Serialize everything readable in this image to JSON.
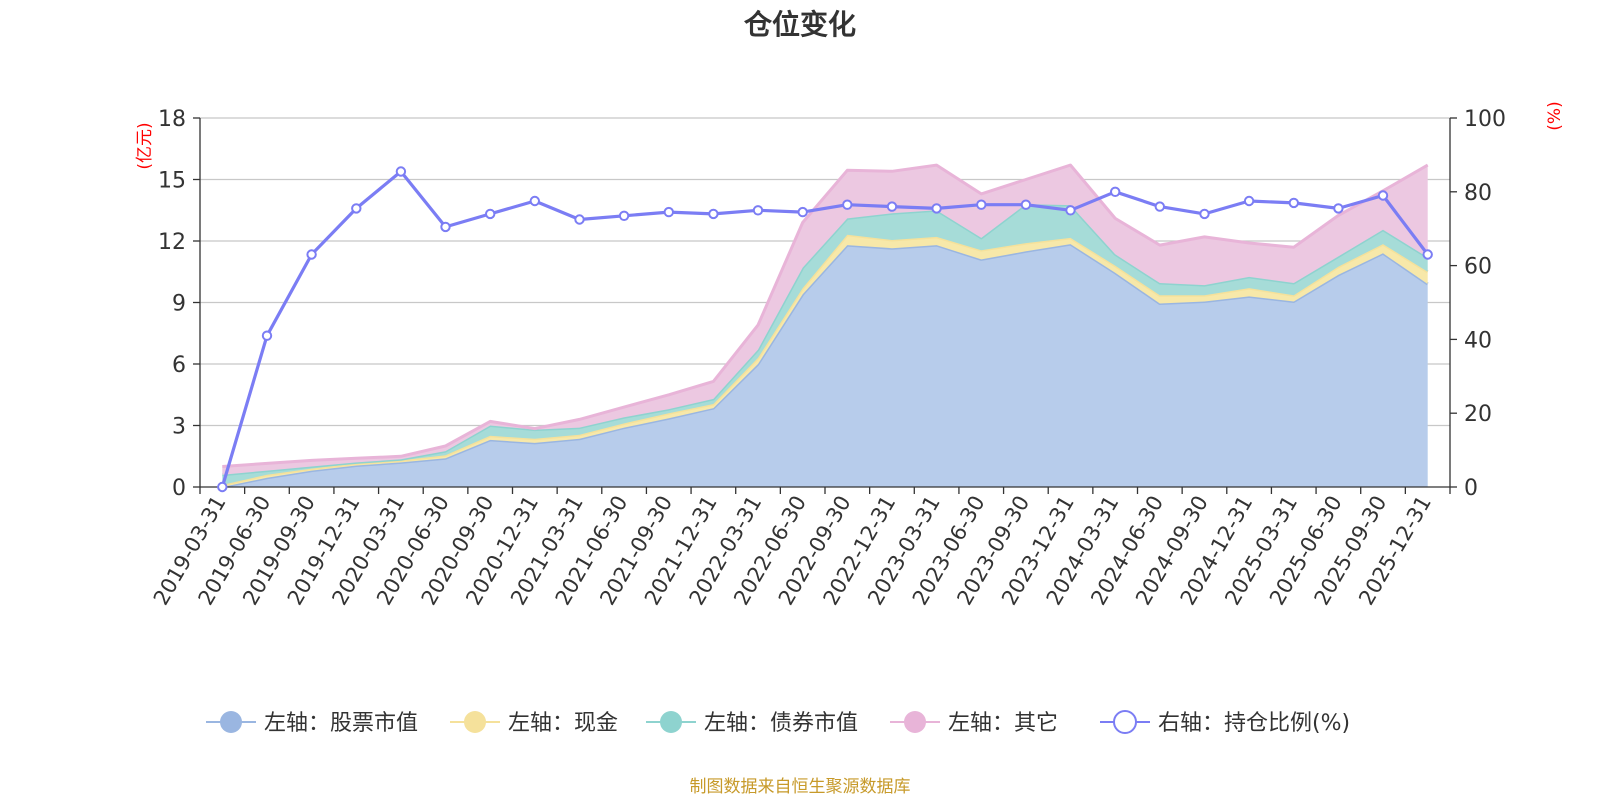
{
  "chart_data": {
    "type": "area",
    "title": "仓位变化",
    "left_axis_unit": "(亿元)",
    "right_axis_unit": "(%)",
    "ylim_left": [
      0,
      18
    ],
    "yticks_left": [
      0,
      3,
      6,
      9,
      12,
      15,
      18
    ],
    "ylim_right": [
      0,
      100
    ],
    "yticks_right": [
      0,
      20,
      40,
      60,
      80,
      100
    ],
    "categories": [
      "2019-03-31",
      "2019-06-30",
      "2019-09-30",
      "2019-12-31",
      "2020-03-31",
      "2020-06-30",
      "2020-09-30",
      "2020-12-31",
      "2021-03-31",
      "2021-06-30",
      "2021-09-30",
      "2021-12-31",
      "2022-03-31",
      "2022-06-30",
      "2022-09-30",
      "2022-12-31",
      "2023-03-31",
      "2023-06-30",
      "2023-09-30",
      "2023-12-31",
      "2024-03-31",
      "2024-06-30",
      "2024-09-30",
      "2024-12-31",
      "2025-03-31",
      "2025-06-30",
      "2025-09-30",
      "2025-12-31"
    ],
    "series": [
      {
        "name": "左轴：股票市值",
        "axis": "left",
        "kind": "stacked-area",
        "color": "#9ab6e1",
        "fill": "#b7cceb",
        "values": [
          0.0,
          0.45,
          0.8,
          1.05,
          1.2,
          1.4,
          2.3,
          2.15,
          2.35,
          2.9,
          3.35,
          3.85,
          6.0,
          9.4,
          11.8,
          11.65,
          11.8,
          11.1,
          11.5,
          11.85,
          10.45,
          8.95,
          9.05,
          9.3,
          9.05,
          10.35,
          11.4,
          9.9
        ]
      },
      {
        "name": "左轴：现金",
        "axis": "left",
        "kind": "stacked-area",
        "color": "#f5e19b",
        "fill": "#f7e8a9",
        "values": [
          0.1,
          0.15,
          0.1,
          0.1,
          0.1,
          0.15,
          0.2,
          0.2,
          0.2,
          0.2,
          0.25,
          0.2,
          0.3,
          0.3,
          0.5,
          0.4,
          0.4,
          0.45,
          0.4,
          0.3,
          0.35,
          0.4,
          0.3,
          0.4,
          0.3,
          0.4,
          0.45,
          0.6
        ]
      },
      {
        "name": "左轴：债券市值",
        "axis": "left",
        "kind": "stacked-area",
        "color": "#8ed3cf",
        "fill": "#a6dcd8",
        "values": [
          0.5,
          0.2,
          0.1,
          0.05,
          0.05,
          0.2,
          0.5,
          0.45,
          0.35,
          0.3,
          0.2,
          0.25,
          0.4,
          1.0,
          0.8,
          1.3,
          1.3,
          0.6,
          1.9,
          1.6,
          0.55,
          0.6,
          0.5,
          0.55,
          0.6,
          0.5,
          0.7,
          0.7
        ]
      },
      {
        "name": "左轴：其它",
        "axis": "left",
        "kind": "stacked-area",
        "color": "#e8b4d8",
        "fill": "#ecc8e1",
        "values": [
          0.4,
          0.35,
          0.3,
          0.2,
          0.15,
          0.25,
          0.2,
          0.05,
          0.4,
          0.5,
          0.7,
          0.85,
          1.2,
          2.2,
          2.35,
          2.05,
          2.2,
          2.15,
          1.2,
          1.95,
          1.75,
          1.85,
          2.35,
          1.65,
          1.75,
          2.0,
          1.9,
          4.5
        ]
      },
      {
        "name": "右轴：持仓比例(%)",
        "axis": "right",
        "kind": "line",
        "color": "#7b7df4",
        "values": [
          0,
          41,
          63,
          75.5,
          85.5,
          70.5,
          74,
          77.5,
          72.5,
          73.5,
          74.5,
          74,
          75,
          74.5,
          76.5,
          76,
          75.5,
          76.5,
          76.5,
          75,
          80,
          76,
          74,
          77.5,
          77,
          75.5,
          79,
          63
        ]
      }
    ],
    "legend": [
      "左轴：股票市值",
      "左轴：现金",
      "左轴：债券市值",
      "左轴：其它",
      "右轴：持仓比例(%)"
    ],
    "legend_position": "bottom",
    "source": "制图数据来自恒生聚源数据库"
  }
}
